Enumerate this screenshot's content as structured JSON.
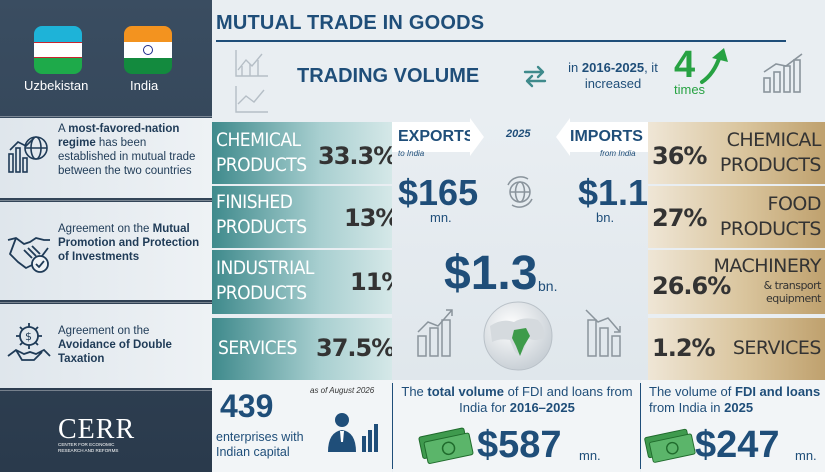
{
  "left_panel": {
    "country_left": "Uzbekistan",
    "country_right": "India",
    "items": [
      {
        "bold": "most-favored-nation regime",
        "pre": "A ",
        "post": " has been established in mutual trade between the two countries"
      },
      {
        "pre": "Agreement on the ",
        "bold": "Mutual Promotion and Protection of Investments",
        "post": ""
      },
      {
        "pre": "Agreement on the ",
        "bold": "Avoidance of Double Taxation",
        "post": ""
      }
    ],
    "logo_text": "CERR",
    "logo_sub": "CENTER FOR ECONOMIC RESEARCH AND REFORMS"
  },
  "title": "MUTUAL TRADE IN GOODS",
  "trading": {
    "label": "TRADING VOLUME",
    "period_pre": "in ",
    "period": "2016-2025",
    "period_post": ", it increased",
    "times_num": "4",
    "times_word": "times"
  },
  "exports": {
    "label": "EXPORTS",
    "sub": "to India",
    "year": "2025",
    "value": "$165",
    "unit": "mn.",
    "rows": [
      {
        "cat": [
          "CHEMICAL",
          "PRODUCTS"
        ],
        "pct": "33.3%"
      },
      {
        "cat": [
          "FINISHED",
          "PRODUCTS"
        ],
        "pct": "13%"
      },
      {
        "cat": [
          "INDUSTRIAL",
          "PRODUCTS"
        ],
        "pct": "11%"
      },
      {
        "cat": [
          "SERVICES"
        ],
        "pct": "37.5%"
      }
    ]
  },
  "imports": {
    "label": "IMPORTS",
    "sub": "from India",
    "value": "$1.1",
    "unit": "bn.",
    "rows": [
      {
        "cat": [
          "CHEMICAL",
          "PRODUCTS"
        ],
        "pct": "36%"
      },
      {
        "cat": [
          "FOOD",
          "PRODUCTS"
        ],
        "pct": "27%"
      },
      {
        "cat": [
          "MACHINERY"
        ],
        "sub": "& transport equipment",
        "pct": "26.6%"
      },
      {
        "cat": [
          "SERVICES"
        ],
        "pct": "1.2%"
      }
    ]
  },
  "total": {
    "value": "$1.3",
    "unit": "bn."
  },
  "bottom": {
    "enterprises_num": "439",
    "enterprises_date": "as of August 2026",
    "enterprises_text": "enterprises with Indian capital",
    "fdi_total_pre": "The ",
    "fdi_total_bold": "total volume",
    "fdi_total_mid": " of FDI and loans from India for ",
    "fdi_total_period": "2016–2025",
    "fdi_total_value": "$587",
    "fdi_total_unit": "mn.",
    "fdi_year_pre": "The volume of ",
    "fdi_year_bold": "FDI and loans",
    "fdi_year_mid": " from India in ",
    "fdi_year_year": "2025",
    "fdi_year_value": "$247",
    "fdi_year_unit": "mn."
  },
  "colors": {
    "navy": "#1f4e79",
    "green": "#27a243",
    "teal": "#3f8a8c",
    "sand": "#bfa16e"
  }
}
